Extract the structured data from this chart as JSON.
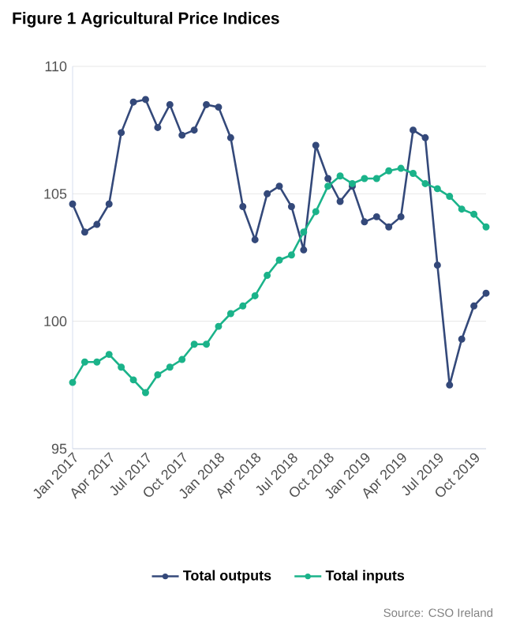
{
  "chart_data": {
    "type": "line",
    "title": "Figure 1 Agricultural Price Indices",
    "x": [
      "2017-01",
      "2017-02",
      "2017-03",
      "2017-04",
      "2017-05",
      "2017-06",
      "2017-07",
      "2017-08",
      "2017-09",
      "2017-10",
      "2017-11",
      "2017-12",
      "2018-01",
      "2018-02",
      "2018-03",
      "2018-04",
      "2018-05",
      "2018-06",
      "2018-07",
      "2018-08",
      "2018-09",
      "2018-10",
      "2018-11",
      "2018-12",
      "2019-01",
      "2019-02",
      "2019-03",
      "2019-04",
      "2019-05",
      "2019-06",
      "2019-07",
      "2019-08",
      "2019-09",
      "2019-10",
      "2019-11"
    ],
    "series": [
      {
        "name": "Total outputs",
        "color": "#34497a",
        "values": [
          104.6,
          103.5,
          103.8,
          104.6,
          107.4,
          108.6,
          108.7,
          107.6,
          108.5,
          107.3,
          107.5,
          108.5,
          108.4,
          107.2,
          104.5,
          103.2,
          105.0,
          105.3,
          104.5,
          102.8,
          106.9,
          105.6,
          104.7,
          105.3,
          103.9,
          104.1,
          103.7,
          104.1,
          107.5,
          107.2,
          102.2,
          97.5,
          99.3,
          100.6,
          101.1
        ]
      },
      {
        "name": "Total inputs",
        "color": "#1bb38a",
        "values": [
          97.6,
          98.4,
          98.4,
          98.7,
          98.2,
          97.7,
          97.2,
          97.9,
          98.2,
          98.5,
          99.1,
          99.1,
          99.8,
          100.3,
          100.6,
          101.0,
          101.8,
          102.4,
          102.6,
          103.5,
          104.3,
          105.3,
          105.7,
          105.4,
          105.6,
          105.6,
          105.9,
          106.0,
          105.8,
          105.4,
          105.2,
          104.9,
          104.4,
          104.2,
          103.7
        ]
      }
    ],
    "xlim": [
      "2017-01",
      "2019-11"
    ],
    "xticks": [
      {
        "value": "2017-01",
        "label": "Jan 2017"
      },
      {
        "value": "2017-04",
        "label": "Apr 2017"
      },
      {
        "value": "2017-07",
        "label": "Jul 2017"
      },
      {
        "value": "2017-10",
        "label": "Oct 2017"
      },
      {
        "value": "2018-01",
        "label": "Jan 2018"
      },
      {
        "value": "2018-04",
        "label": "Apr 2018"
      },
      {
        "value": "2018-07",
        "label": "Jul 2018"
      },
      {
        "value": "2018-10",
        "label": "Oct 2018"
      },
      {
        "value": "2019-01",
        "label": "Jan 2019"
      },
      {
        "value": "2019-04",
        "label": "Apr 2019"
      },
      {
        "value": "2019-07",
        "label": "Jul 2019"
      },
      {
        "value": "2019-10",
        "label": "Oct 2019"
      }
    ],
    "ylim": [
      95,
      110
    ],
    "yticks": [
      95,
      100,
      105,
      110
    ],
    "grid": "y",
    "legend": "bottom",
    "marker": "circle",
    "line_style": "solid",
    "annotations": [
      "Source: CSO Ireland"
    ]
  }
}
